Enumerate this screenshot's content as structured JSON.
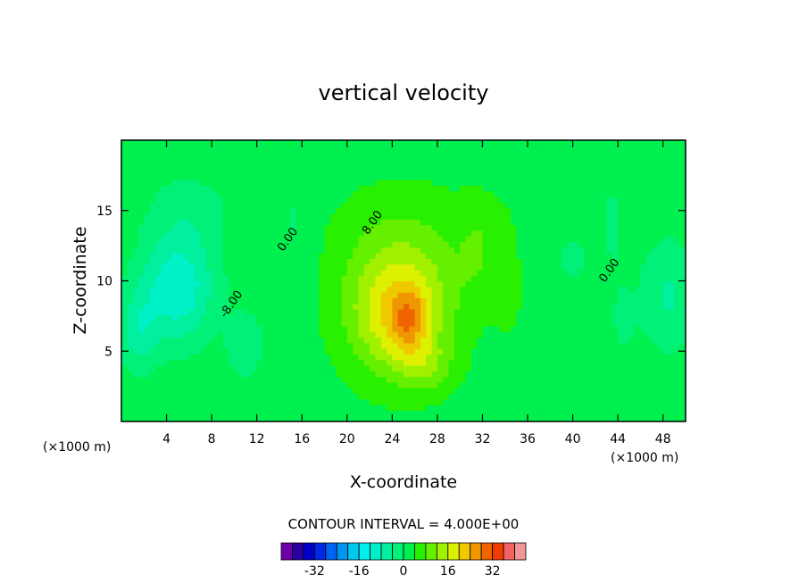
{
  "chart_data": {
    "type": "heatmap",
    "title": "vertical velocity",
    "xlabel": "X-coordinate",
    "ylabel": "Z-coordinate",
    "x_unit": "(×1000 m)",
    "y_unit": "(×1000 m)",
    "xlim": [
      0,
      50
    ],
    "ylim": [
      0,
      20
    ],
    "x_ticks": [
      4,
      8,
      12,
      16,
      20,
      24,
      28,
      32,
      36,
      40,
      44,
      48
    ],
    "x_tick_labels": [
      "4",
      "8",
      "12",
      "16",
      "20",
      "24",
      "28",
      "32",
      "36",
      "40",
      "44",
      "48"
    ],
    "y_ticks": [
      5,
      10,
      15
    ],
    "y_tick_labels": [
      "5",
      "10",
      "15"
    ],
    "contour_interval_text": "CONTOUR INTERVAL = 4.000E+00",
    "contour_line_labels": [
      {
        "text": "-8.00",
        "x": 10,
        "y": 8.2
      },
      {
        "text": "8.00",
        "x": 22.5,
        "y": 14.0
      },
      {
        "text": "0.00",
        "x": 15.0,
        "y": 12.8
      },
      {
        "text": "0.00",
        "x": 43.5,
        "y": 10.6
      }
    ],
    "colorbar": {
      "levels": [
        -40,
        -36,
        -32,
        -28,
        -24,
        -20,
        -16,
        -12,
        -8,
        -4,
        0,
        4,
        8,
        12,
        16,
        20,
        24,
        28,
        32,
        36,
        40
      ],
      "colors": [
        "#6e00a8",
        "#2a00a0",
        "#0000c8",
        "#0028e6",
        "#0064f0",
        "#0096f0",
        "#00c8f0",
        "#00f0f0",
        "#00f0c8",
        "#00f0a0",
        "#00f078",
        "#00f050",
        "#28f000",
        "#64f000",
        "#a0f000",
        "#dcf000",
        "#f0c800",
        "#f09600",
        "#f06400",
        "#f03c00",
        "#f06464",
        "#f09696"
      ],
      "tick_values": [
        -32,
        -16,
        0,
        16,
        32
      ],
      "tick_labels": [
        "-32",
        "-16",
        "0",
        "16",
        "32"
      ]
    },
    "field_features": [
      {
        "kind": "downdraft",
        "x": 5,
        "z": 9,
        "min": -14
      },
      {
        "kind": "downdraft",
        "x": 1.5,
        "z": 6,
        "min": -12
      },
      {
        "kind": "downdraft",
        "x": 11,
        "z": 6,
        "min": -7
      },
      {
        "kind": "updraft",
        "x": 25,
        "z": 7,
        "max": 22
      },
      {
        "kind": "updraft",
        "x": 25.5,
        "z": 7.5,
        "max": 26
      },
      {
        "kind": "updraft",
        "x": 27,
        "z": 4,
        "max": 18
      },
      {
        "kind": "updraft",
        "x": 31.5,
        "z": 13,
        "max": 6
      },
      {
        "kind": "downdraft",
        "x": 48.5,
        "z": 11,
        "min": -7
      }
    ]
  }
}
